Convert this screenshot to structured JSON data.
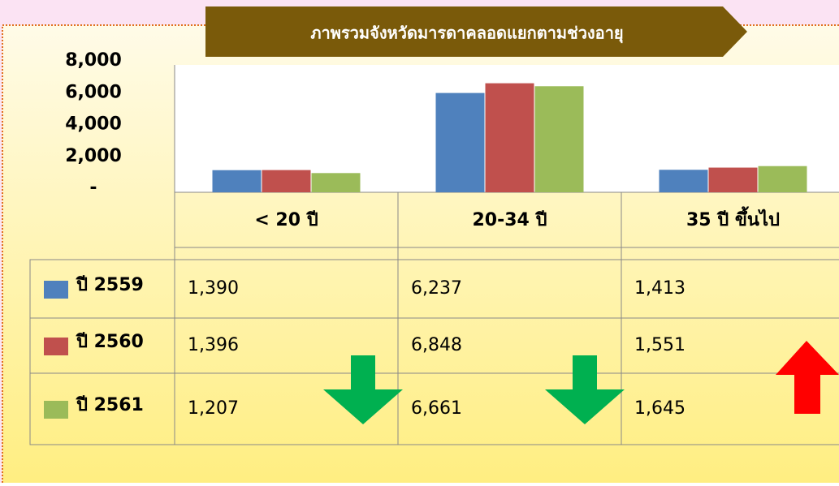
{
  "chart_data": {
    "type": "bar",
    "title": "ภาพรวมจังหวัดมารดาคลอดแยกตามช่วงอายุ",
    "categories": [
      "< 20 ปี",
      "20-34 ปี",
      "35 ปี ขึ้นไป"
    ],
    "series": [
      {
        "name": "ปี 2559",
        "color": "#4f81bd",
        "values": [
          1390,
          6237,
          1413
        ],
        "value_labels": [
          "1,390",
          "6,237",
          "1,413"
        ]
      },
      {
        "name": "ปี 2560",
        "color": "#c0504d",
        "values": [
          1396,
          6848,
          1551
        ],
        "value_labels": [
          "1,396",
          "6,848",
          "1,551"
        ]
      },
      {
        "name": "ปี 2561",
        "color": "#9bbb59",
        "values": [
          1207,
          6661,
          1645
        ],
        "value_labels": [
          "1,207",
          "6,661",
          "1,645"
        ]
      }
    ],
    "ylim": [
      0,
      8000
    ],
    "yticks": [
      {
        "value": 0,
        "label": "-"
      },
      {
        "value": 2000,
        "label": "2,000"
      },
      {
        "value": 4000,
        "label": "4,000"
      },
      {
        "value": 6000,
        "label": "6,000"
      },
      {
        "value": 8000,
        "label": "8,000"
      }
    ]
  }
}
